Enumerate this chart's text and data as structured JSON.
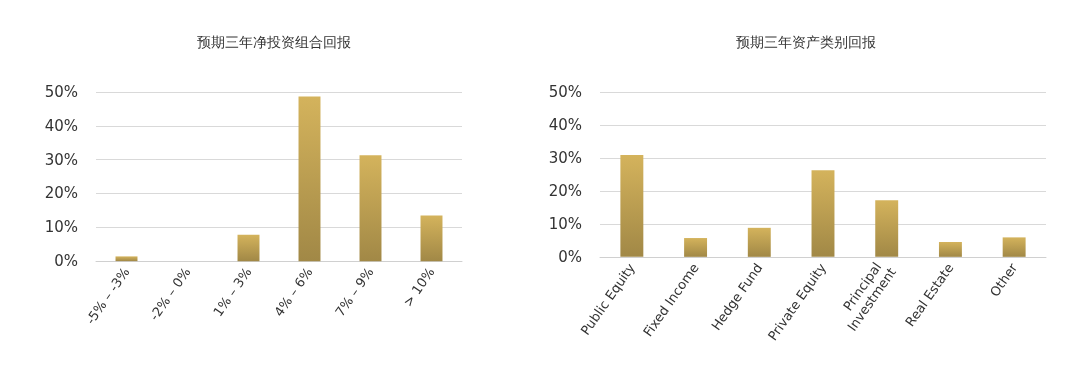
{
  "chart_data": [
    {
      "type": "bar",
      "title": "预期三年净投资组合回报",
      "categories": [
        "-5% – -3%",
        "-2% – 0%",
        "1% – 3%",
        "4% – 6%",
        "7% – 9%",
        "> 10%"
      ],
      "values": [
        1.4,
        0,
        7.8,
        48.7,
        31.3,
        13.5
      ],
      "color": "#c4a655",
      "ylim": [
        0,
        50
      ],
      "yticks": [
        {
          "value": 0,
          "label": "0%"
        },
        {
          "value": 10,
          "label": "10%"
        },
        {
          "value": 20,
          "label": "20%"
        },
        {
          "value": 30,
          "label": "30%"
        },
        {
          "value": 40,
          "label": "40%"
        },
        {
          "value": 50,
          "label": "50%"
        }
      ],
      "grid": "y"
    },
    {
      "type": "bar",
      "title": "预期三年资产类别回报",
      "categories": [
        "Public Equity",
        "Fixed Income",
        "Hedge Fund",
        "Private Equity",
        "Principal Investment",
        "Real Estate",
        "Other"
      ],
      "values": [
        30.9,
        5.7,
        8.8,
        26.3,
        17.2,
        4.5,
        5.9
      ],
      "color": "#c4a655",
      "ylim": [
        0,
        50
      ],
      "yticks": [
        {
          "value": 0,
          "label": "0%"
        },
        {
          "value": 10,
          "label": "10%"
        },
        {
          "value": 20,
          "label": "20%"
        },
        {
          "value": 30,
          "label": "30%"
        },
        {
          "value": 40,
          "label": "40%"
        },
        {
          "value": 50,
          "label": "50%"
        }
      ],
      "grid": "y"
    }
  ]
}
